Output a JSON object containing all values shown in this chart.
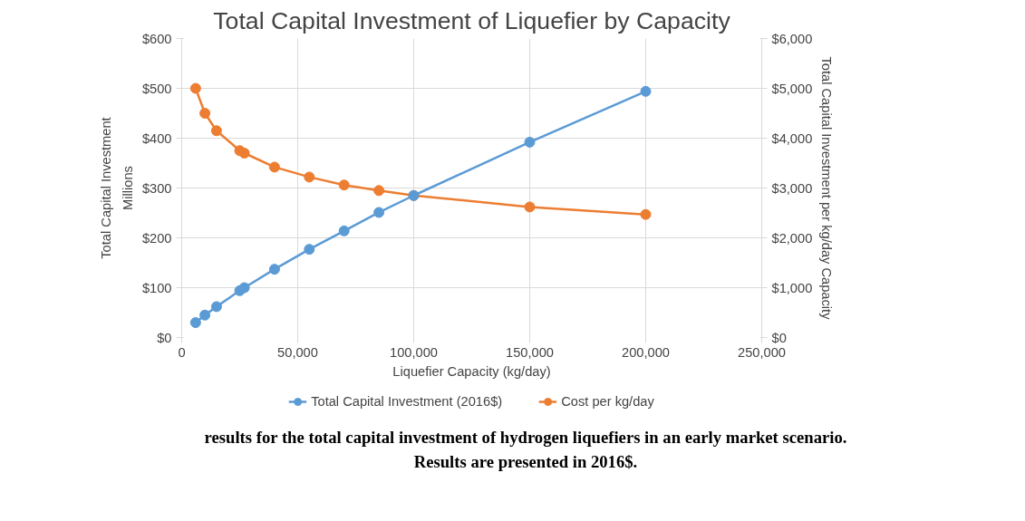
{
  "chart_data": {
    "type": "line",
    "title": "Total Capital Investment of Liquefier by Capacity",
    "xlabel": "Liquefier Capacity (kg/day)",
    "ylabel": "Total Capital Investment",
    "y2label": "Total Capital Investment per kg/day Capacity",
    "x": [
      6000,
      10000,
      15000,
      25000,
      27000,
      40000,
      55000,
      70000,
      85000,
      100000,
      150000,
      200000
    ],
    "series": [
      {
        "name": "Total Capital Investment (2016$)",
        "color": "#5b9bd5",
        "values": [
          30,
          45,
          62,
          94,
          100,
          137,
          177,
          214,
          251,
          285,
          392,
          494
        ]
      },
      {
        "name": "Cost per kg/day",
        "color": "#ed7d31",
        "axis": "y2",
        "values": [
          5000,
          4500,
          4150,
          3750,
          3700,
          3420,
          3220,
          3060,
          2950,
          2850,
          2620,
          2470
        ]
      }
    ],
    "xlim": [
      0,
      250000
    ],
    "xticks": [
      0,
      {
        "value": 50000,
        "label": "50,000"
      },
      {
        "value": 100000,
        "label": "100,000"
      },
      {
        "value": 150000,
        "label": "150,000"
      },
      {
        "value": 200000,
        "label": "200,000"
      },
      {
        "value": 250000,
        "label": "250,000"
      }
    ],
    "ylim": [
      0,
      600
    ],
    "yticks": [
      {
        "value": 0,
        "label": "$0"
      },
      {
        "value": 100,
        "label": "$100"
      },
      {
        "value": 200,
        "label": "$200"
      },
      {
        "value": 300,
        "label": "$300"
      },
      {
        "value": 400,
        "label": "$400"
      },
      {
        "value": 500,
        "label": "$500"
      },
      {
        "value": 600,
        "label": "$600"
      }
    ],
    "y2lim": [
      0,
      6000
    ],
    "y2ticks": [
      {
        "value": 0,
        "label": "$0"
      },
      {
        "value": 1000,
        "label": "$1,000"
      },
      {
        "value": 2000,
        "label": "$2,000"
      },
      {
        "value": 3000,
        "label": "$3,000"
      },
      {
        "value": 4000,
        "label": "$4,000"
      },
      {
        "value": 5000,
        "label": "$5,000"
      },
      {
        "value": 6000,
        "label": "$6,000"
      }
    ],
    "annotations": [
      "Millions",
      "results for the total capital investment of hydrogen liquefiers in an early market scenario. Results are presented in 2016$."
    ],
    "grid": true,
    "legend": "bottom",
    "marker": "circle",
    "line_style": "solid"
  }
}
